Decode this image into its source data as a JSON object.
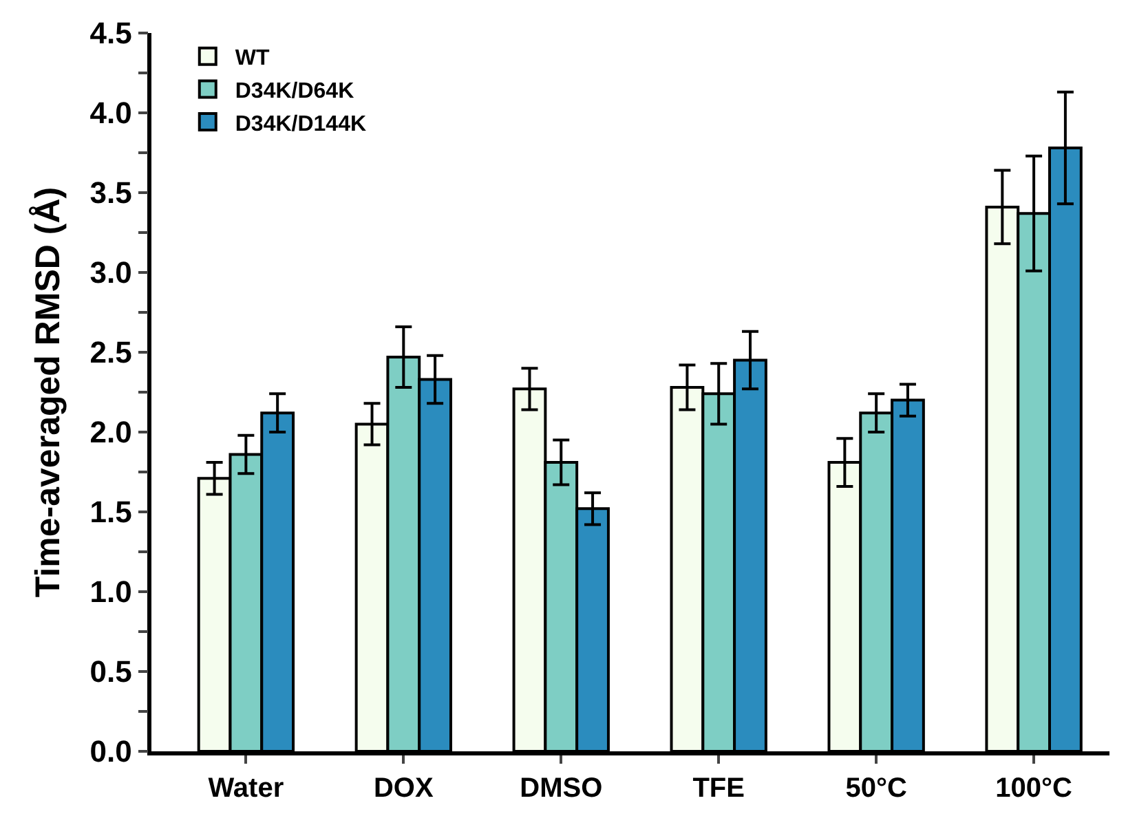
{
  "chart_data": {
    "type": "bar",
    "ylabel": "Time-averaged RMSD (Å)",
    "categories": [
      "Water",
      "DOX",
      "DMSO",
      "TFE",
      "50°C",
      "100°C"
    ],
    "series": [
      {
        "name": "WT",
        "color": "#f5fdee",
        "values": [
          1.71,
          2.05,
          2.27,
          2.28,
          1.81,
          3.41
        ],
        "errors": [
          0.1,
          0.13,
          0.13,
          0.14,
          0.15,
          0.23
        ]
      },
      {
        "name": "D34K/D64K",
        "color": "#7ecec4",
        "values": [
          1.86,
          2.47,
          1.81,
          2.24,
          2.12,
          3.37
        ],
        "errors": [
          0.12,
          0.19,
          0.14,
          0.19,
          0.12,
          0.36
        ]
      },
      {
        "name": "D34K/D144K",
        "color": "#2b8cbe",
        "values": [
          2.12,
          2.33,
          1.52,
          2.45,
          2.2,
          3.78
        ],
        "errors": [
          0.12,
          0.15,
          0.1,
          0.18,
          0.1,
          0.35
        ]
      }
    ],
    "ylim": [
      0,
      4.5
    ],
    "yticks": [
      {
        "value": 0,
        "label": "0.0"
      },
      {
        "value": 0.25,
        "label": null
      },
      {
        "value": 0.5,
        "label": "0.5"
      },
      {
        "value": 0.75,
        "label": null
      },
      {
        "value": 1,
        "label": "1.0"
      },
      {
        "value": 1.25,
        "label": null
      },
      {
        "value": 1.5,
        "label": "1.5"
      },
      {
        "value": 1.75,
        "label": null
      },
      {
        "value": 2,
        "label": "2.0"
      },
      {
        "value": 2.25,
        "label": null
      },
      {
        "value": 2.5,
        "label": "2.5"
      },
      {
        "value": 2.75,
        "label": null
      },
      {
        "value": 3,
        "label": "3.0"
      },
      {
        "value": 3.25,
        "label": null
      },
      {
        "value": 3.5,
        "label": "3.5"
      },
      {
        "value": 3.75,
        "label": null
      },
      {
        "value": 4,
        "label": "4.0"
      },
      {
        "value": 4.25,
        "label": null
      },
      {
        "value": 4.5,
        "label": "4.5"
      }
    ],
    "legend": "top left"
  }
}
